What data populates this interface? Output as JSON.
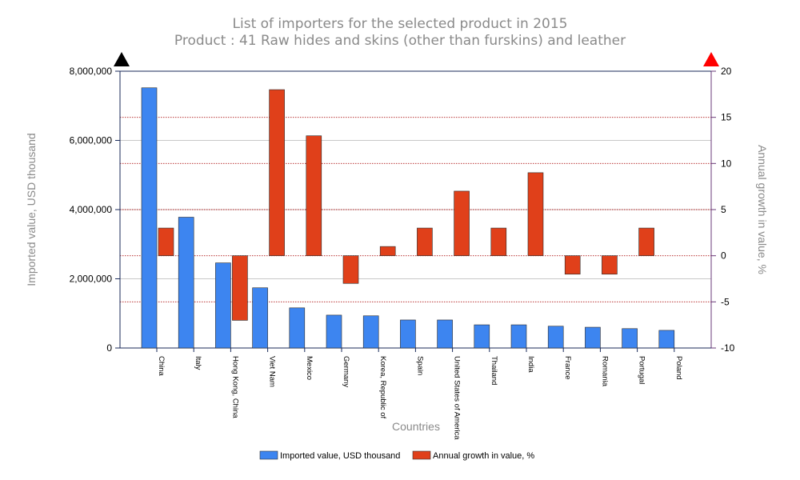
{
  "chart_data": {
    "type": "bar",
    "title": "List of importers for the selected product in 2015",
    "subtitle": "Product : 41 Raw hides and skins (other than furskins) and leather",
    "xlabel": "Countries",
    "ylabel": "Imported value, USD thousand",
    "y2label": "Annual growth in value, %",
    "categories": [
      "China",
      "Italy",
      "Hong Kong, China",
      "Viet Nam",
      "Mexico",
      "Germany",
      "Korea, Republic of",
      "Spain",
      "United States of America",
      "Thailand",
      "India",
      "France",
      "Romania",
      "Portugal",
      "Poland"
    ],
    "series": [
      {
        "name": "Imported value, USD thousand",
        "axis": "left",
        "color": "#3d85f0",
        "values": [
          7520000,
          3780000,
          2460000,
          1740000,
          1160000,
          950000,
          930000,
          810000,
          810000,
          670000,
          670000,
          630000,
          600000,
          560000,
          510000
        ]
      },
      {
        "name": "Annual growth in value, %",
        "axis": "right",
        "color": "#e0401a",
        "values": [
          3,
          null,
          -7,
          18,
          13,
          -3,
          1,
          3,
          7,
          3,
          9,
          -2,
          -2,
          3,
          null
        ]
      }
    ],
    "ylim": [
      0,
      8000000
    ],
    "y2lim": [
      -10,
      20
    ],
    "yticks": [
      0,
      2000000,
      4000000,
      6000000,
      8000000
    ],
    "yticklabels": [
      "0",
      "2,000,000",
      "4,000,000",
      "6,000,000",
      "8,000,000"
    ],
    "y2ticks": [
      -10,
      -5,
      0,
      5,
      10,
      15,
      20
    ],
    "y2ticklabels": [
      "-10",
      "-5",
      "0",
      "5",
      "10",
      "15",
      "20"
    ],
    "legend": "bottom-center"
  }
}
